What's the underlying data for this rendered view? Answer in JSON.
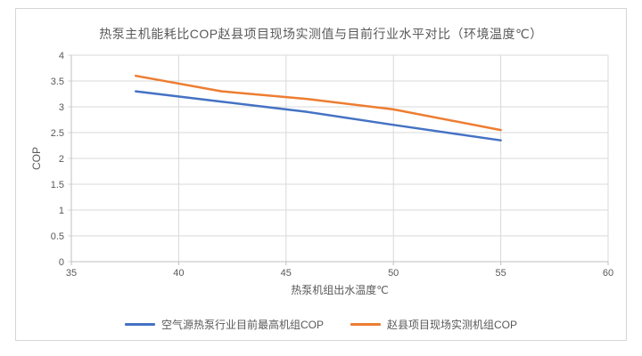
{
  "window": {
    "background": "#ffffff",
    "frame_border_color": "#d6d6d6"
  },
  "chart_data": {
    "type": "line",
    "title": "热泵主机能耗比COP赵县项目现场实测值与目前行业水平对比（环境温度℃）",
    "xlabel": "热泵机组出水温度℃",
    "ylabel": "COP",
    "xlim": [
      35,
      60
    ],
    "ylim": [
      0,
      4
    ],
    "x_ticks": [
      35,
      40,
      45,
      50,
      55,
      60
    ],
    "y_ticks": [
      0,
      0.5,
      1,
      1.5,
      2,
      2.5,
      3,
      3.5,
      4
    ],
    "grid": true,
    "legend_position": "bottom",
    "x": [
      38,
      42,
      46,
      50,
      55
    ],
    "series": [
      {
        "name": "空气源热泵行业目前最高机组COP",
        "color": "#4472C4",
        "values": [
          3.3,
          3.1,
          2.9,
          2.65,
          2.35
        ]
      },
      {
        "name": "赵县项目现场实测机组COP",
        "color": "#ED7D31",
        "values": [
          3.6,
          3.3,
          3.15,
          2.95,
          2.55
        ]
      }
    ],
    "colors": {
      "gridline": "#d9d9d9",
      "axis": "#bfbfbf",
      "text": "#595959"
    }
  }
}
